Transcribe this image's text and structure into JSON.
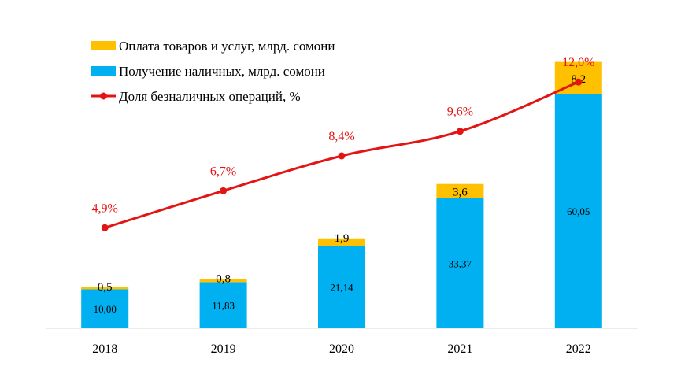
{
  "chart_data": {
    "type": "bar",
    "stacked": true,
    "categories": [
      "2018",
      "2019",
      "2020",
      "2021",
      "2022"
    ],
    "series": [
      {
        "name": "Получение наличных, млрд. сомони",
        "values": [
          10.0,
          11.83,
          21.14,
          33.37,
          60.05
        ],
        "labels": [
          "10,00",
          "11,83",
          "21,14",
          "33,37",
          "60,05"
        ],
        "color": "#00B0F0"
      },
      {
        "name": "Оплата товаров и услуг, млрд. сомони",
        "values": [
          0.5,
          0.8,
          1.9,
          3.6,
          8.2
        ],
        "labels": [
          "0,5",
          "0,8",
          "1,9",
          "3,6",
          "8,2"
        ],
        "color": "#FFC000"
      }
    ],
    "line_series": {
      "name": "Доля безналичных операций, %",
      "values": [
        4.9,
        6.7,
        8.4,
        9.6,
        12.0
      ],
      "labels": [
        "4,9%",
        "6,7%",
        "8,4%",
        "9,6%",
        "12,0%"
      ],
      "color": "#E31414"
    },
    "legend_order": [
      1,
      0,
      "line"
    ],
    "legend_position": "top-left",
    "grid": false,
    "bar_ylim": [
      0,
      72
    ],
    "line_ylim": [
      0,
      14
    ]
  }
}
